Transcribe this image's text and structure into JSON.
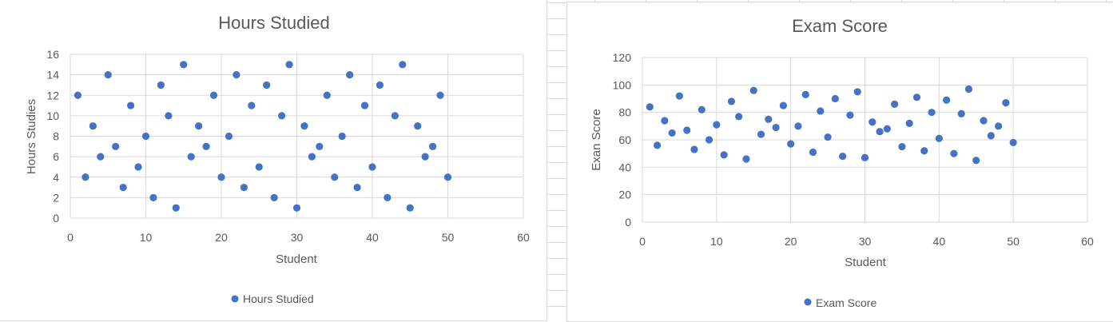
{
  "charts": [
    {
      "title": "Hours Studied",
      "xlabel": "Student",
      "ylabel": "Hours Studies",
      "legend": "Hours Studied",
      "color": "#4472C4"
    },
    {
      "title": "Exam Score",
      "xlabel": "Student",
      "ylabel": "Exan Score",
      "legend": "Exam Score",
      "color": "#4472C4"
    }
  ],
  "chart_data": [
    {
      "type": "scatter",
      "title": "Hours Studied",
      "xlabel": "Student",
      "ylabel": "Hours Studies",
      "xlim": [
        0,
        60
      ],
      "ylim": [
        0,
        16
      ],
      "xticks": [
        0,
        10,
        20,
        30,
        40,
        50,
        60
      ],
      "yticks": [
        0,
        2,
        4,
        6,
        8,
        10,
        12,
        14,
        16
      ],
      "grid": true,
      "legend_position": "bottom",
      "series": [
        {
          "name": "Hours Studied",
          "x": [
            1,
            2,
            3,
            4,
            5,
            6,
            7,
            8,
            9,
            10,
            11,
            12,
            13,
            14,
            15,
            16,
            17,
            18,
            19,
            20,
            21,
            22,
            23,
            24,
            25,
            26,
            27,
            28,
            29,
            30,
            31,
            32,
            33,
            34,
            35,
            36,
            37,
            38,
            39,
            40,
            41,
            42,
            43,
            44,
            45,
            46,
            47,
            48,
            49,
            50
          ],
          "y": [
            12,
            4,
            9,
            6,
            14,
            7,
            3,
            11,
            5,
            8,
            2,
            13,
            10,
            1,
            15,
            6,
            9,
            7,
            12,
            4,
            8,
            14,
            3,
            11,
            5,
            13,
            2,
            10,
            15,
            1,
            9,
            6,
            7,
            12,
            4,
            8,
            14,
            3,
            11,
            5,
            13,
            2,
            10,
            15,
            1,
            9,
            6,
            7,
            12,
            4
          ]
        }
      ]
    },
    {
      "type": "scatter",
      "title": "Exam Score",
      "xlabel": "Student",
      "ylabel": "Exan Score",
      "xlim": [
        0,
        60
      ],
      "ylim": [
        0,
        120
      ],
      "xticks": [
        0,
        10,
        20,
        30,
        40,
        50,
        60
      ],
      "yticks": [
        0,
        20,
        40,
        60,
        80,
        100,
        120
      ],
      "grid": true,
      "legend_position": "bottom",
      "series": [
        {
          "name": "Exam Score",
          "x": [
            1,
            2,
            3,
            4,
            5,
            6,
            7,
            8,
            9,
            10,
            11,
            12,
            13,
            14,
            15,
            16,
            17,
            18,
            19,
            20,
            21,
            22,
            23,
            24,
            25,
            26,
            27,
            28,
            29,
            30,
            31,
            32,
            33,
            34,
            35,
            36,
            37,
            38,
            39,
            40,
            41,
            42,
            43,
            44,
            45,
            46,
            47,
            48,
            49,
            50
          ],
          "y": [
            84,
            56,
            74,
            65,
            92,
            67,
            53,
            82,
            60,
            71,
            49,
            88,
            77,
            46,
            96,
            64,
            75,
            69,
            85,
            57,
            70,
            93,
            51,
            81,
            62,
            90,
            48,
            78,
            95,
            47,
            73,
            66,
            68,
            86,
            55,
            72,
            91,
            52,
            80,
            61,
            89,
            50,
            79,
            97,
            45,
            74,
            63,
            70,
            87,
            58
          ]
        }
      ]
    }
  ]
}
